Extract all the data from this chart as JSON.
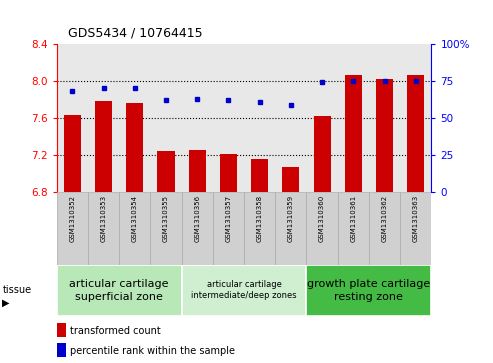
{
  "title": "GDS5434 / 10764415",
  "samples": [
    "GSM1310352",
    "GSM1310353",
    "GSM1310354",
    "GSM1310355",
    "GSM1310356",
    "GSM1310357",
    "GSM1310358",
    "GSM1310359",
    "GSM1310360",
    "GSM1310361",
    "GSM1310362",
    "GSM1310363"
  ],
  "bar_values": [
    7.63,
    7.78,
    7.76,
    7.25,
    7.26,
    7.21,
    7.16,
    7.07,
    7.62,
    8.06,
    8.02,
    8.06
  ],
  "blue_percentiles": [
    68,
    70,
    70,
    62,
    63,
    62,
    61,
    59,
    74,
    75,
    75,
    75
  ],
  "bar_color": "#cc0000",
  "blue_color": "#0000cc",
  "ylim_left": [
    6.8,
    8.4
  ],
  "ylim_right": [
    0,
    100
  ],
  "yticks_left": [
    6.8,
    7.2,
    7.6,
    8.0,
    8.4
  ],
  "yticks_right": [
    0,
    25,
    50,
    75,
    100
  ],
  "tissue_groups": [
    {
      "label": "articular cartilage\nsuperficial zone",
      "start": 0,
      "end": 3,
      "color": "#b8e8b8",
      "fontsize": 8
    },
    {
      "label": "articular cartilage\nintermediate/deep zones",
      "start": 4,
      "end": 7,
      "color": "#d0eed0",
      "fontsize": 6
    },
    {
      "label": "growth plate cartilage\nresting zone",
      "start": 8,
      "end": 11,
      "color": "#44bb44",
      "fontsize": 8
    }
  ],
  "baseline": 6.8,
  "background_color": "#ffffff",
  "plot_bg": "#e8e8e8"
}
